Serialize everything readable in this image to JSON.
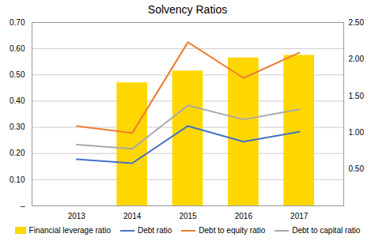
{
  "chart_data": {
    "type": "bar",
    "title": "Solvency Ratios",
    "x": [
      2013,
      2014,
      2015,
      2016,
      2017
    ],
    "xlim": [
      2012.2,
      2017.8
    ],
    "xticks": [
      2013,
      2014,
      2015,
      2016,
      2017
    ],
    "ylim": [
      0,
      0.7
    ],
    "yticks": [
      {
        "value": 0,
        "label": "–"
      },
      {
        "value": 0.1,
        "label": "0.10"
      },
      {
        "value": 0.2,
        "label": "0.20"
      },
      {
        "value": 0.3,
        "label": "0.30"
      },
      {
        "value": 0.4,
        "label": "0.40"
      },
      {
        "value": 0.5,
        "label": "0.50"
      },
      {
        "value": 0.6,
        "label": "0.60"
      },
      {
        "value": 0.7,
        "label": "0.70"
      }
    ],
    "y2lim": [
      0,
      2.5
    ],
    "y2ticks": [
      {
        "value": 0.5,
        "label": "0.50"
      },
      {
        "value": 1.0,
        "label": "1.00"
      },
      {
        "value": 1.5,
        "label": "1.50"
      },
      {
        "value": 2.0,
        "label": "2.00"
      },
      {
        "value": 2.5,
        "label": "2.50"
      }
    ],
    "grid": true,
    "legend": "bottom",
    "series": [
      {
        "name": "Financial leverage ratio",
        "type": "bar",
        "color": "#FFD700",
        "values": [
          0,
          0.47,
          0.515,
          0.565,
          0.575
        ]
      },
      {
        "name": "Debt ratio",
        "type": "line",
        "color": "#4472C4",
        "values": [
          0.178,
          0.163,
          0.305,
          0.245,
          0.283
        ]
      },
      {
        "name": "Debt to equity ratio",
        "type": "line",
        "color": "#ED7D31",
        "values": [
          0.305,
          0.278,
          0.625,
          0.488,
          0.585
        ]
      },
      {
        "name": "Debt to capital ratio",
        "type": "line",
        "color": "#A9A9A9",
        "values": [
          0.234,
          0.218,
          0.383,
          0.33,
          0.368
        ]
      }
    ]
  }
}
